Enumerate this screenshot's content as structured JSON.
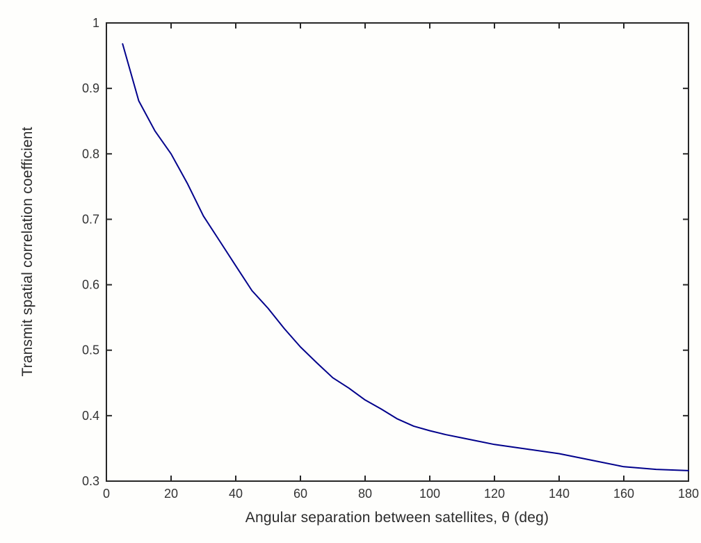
{
  "figure": {
    "background": "#fefefc",
    "box_color": "#262626",
    "text_color": "#2b2b2b",
    "tick_label_color": "#333333"
  },
  "chart_data": {
    "type": "line",
    "title": "",
    "xlabel": "Angular separation between satellites, θ (deg)",
    "ylabel": "Transmit spatial correlation coefficient",
    "xlim": [
      0,
      180
    ],
    "ylim": [
      0.3,
      1.0
    ],
    "x_ticks": [
      0,
      20,
      40,
      60,
      80,
      100,
      120,
      140,
      160,
      180
    ],
    "x_tick_labels": [
      "0",
      "20",
      "40",
      "60",
      "80",
      "100",
      "120",
      "140",
      "160",
      "180"
    ],
    "y_ticks": [
      0.3,
      0.4,
      0.5,
      0.6,
      0.7,
      0.8,
      0.9,
      1.0
    ],
    "y_tick_labels": [
      "0.3",
      "0.4",
      "0.5",
      "0.6",
      "0.7",
      "0.8",
      "0.9",
      "1"
    ],
    "grid": false,
    "legend": null,
    "box": true,
    "series": [
      {
        "name": "transmit-spatial-correlation",
        "color": "#00008B",
        "line_width": 2,
        "x": [
          5,
          10,
          15,
          20,
          25,
          30,
          35,
          40,
          45,
          50,
          55,
          60,
          65,
          70,
          75,
          80,
          85,
          90,
          95,
          100,
          105,
          110,
          120,
          130,
          140,
          150,
          160,
          170,
          180
        ],
        "y": [
          0.968,
          0.881,
          0.835,
          0.8,
          0.755,
          0.705,
          0.667,
          0.629,
          0.591,
          0.564,
          0.533,
          0.505,
          0.481,
          0.458,
          0.442,
          0.424,
          0.41,
          0.395,
          0.384,
          0.377,
          0.371,
          0.366,
          0.356,
          0.349,
          0.342,
          0.332,
          0.322,
          0.318,
          0.316
        ]
      }
    ]
  }
}
